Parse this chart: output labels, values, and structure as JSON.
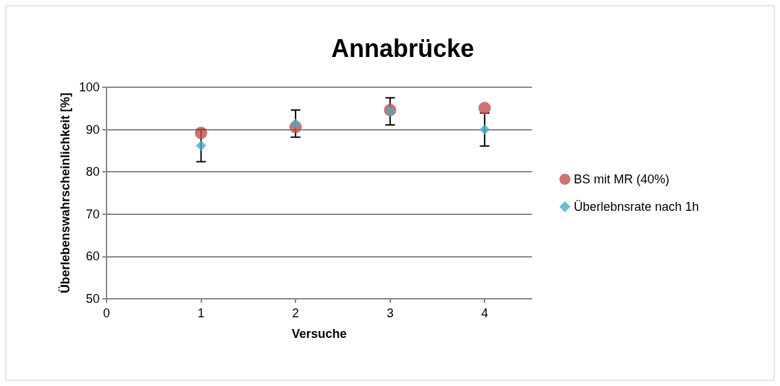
{
  "chart_data": {
    "type": "scatter",
    "title": "Annabrücke",
    "xlabel": "Versuche",
    "ylabel": "Überlebenswahrscheinlichkeit [%]",
    "x": [
      1,
      2,
      3,
      4
    ],
    "series": [
      {
        "name": "BS mit MR (40%)",
        "color": "#c0504d",
        "marker": "circle",
        "values": [
          89.2,
          90.6,
          94.6,
          95.1
        ]
      },
      {
        "name": "Überlebnsrate nach 1h",
        "color": "#4bacc6",
        "marker": "diamond",
        "values": [
          86.2,
          91.4,
          94.3,
          90.0
        ],
        "errors": [
          3.8,
          3.2,
          3.2,
          3.9
        ]
      }
    ],
    "xlim": [
      0,
      4.5
    ],
    "xticks": [
      0,
      1,
      2,
      3,
      4
    ],
    "ylim": [
      50,
      100
    ],
    "yticks": [
      50,
      60,
      70,
      80,
      90,
      100
    ],
    "grid": "y",
    "legend": "right"
  }
}
